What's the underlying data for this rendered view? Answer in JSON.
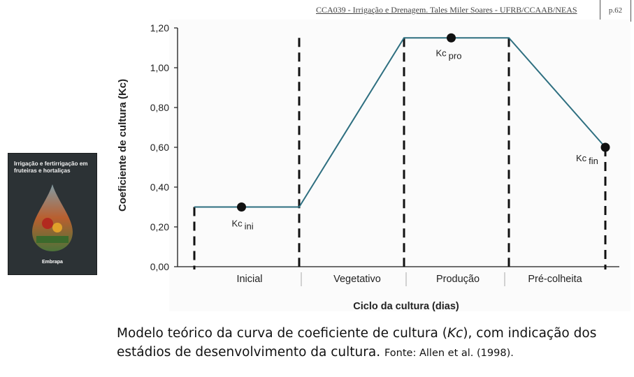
{
  "header": {
    "course": "CCA039 - Irrigação e Drenagem. Tales Miler Soares - UFRB/CCAAB/NEAS",
    "page": "p.62"
  },
  "book": {
    "title": "Irrigação e fertirrigação em fruteiras e hortaliças",
    "logo": "Embrapa"
  },
  "caption": {
    "main_before": "Modelo teórico da curva de coeficiente de cultura (",
    "main_italic": "Kc",
    "main_after": "), com indicação dos estádios de desenvolvimento da cultura.",
    "source": "Fonte: Allen et al. (1998)."
  },
  "colors": {
    "curve": "#2e6f80",
    "axis": "#1a1a1a",
    "marker": "#111111"
  },
  "chart_data": {
    "type": "line",
    "title": "",
    "xlabel": "Ciclo da cultura (dias)",
    "ylabel": "Coeficiente de cultura (Kc)",
    "ylim": [
      0,
      1.2
    ],
    "yticks": [
      {
        "value": 0.0,
        "label": "0,00"
      },
      {
        "value": 0.2,
        "label": "0,20"
      },
      {
        "value": 0.4,
        "label": "0,40"
      },
      {
        "value": 0.6,
        "label": "0,60"
      },
      {
        "value": 0.8,
        "label": "0,80"
      },
      {
        "value": 1.0,
        "label": "1,00"
      },
      {
        "value": 1.2,
        "label": "1,20"
      }
    ],
    "xlim": [
      0,
      4
    ],
    "stages": [
      "Inicial",
      "Vegetativo",
      "Produção",
      "Pré-colheita"
    ],
    "stage_boundaries": [
      0.1,
      1.0,
      2.0,
      3.0,
      3.95
    ],
    "series": [
      {
        "x": [
          0.0,
          1.0,
          2.0,
          3.0,
          3.95
        ],
        "y": [
          0.3,
          0.3,
          1.15,
          1.15,
          0.6
        ]
      }
    ],
    "points": [
      {
        "x": 0.45,
        "y": 0.3,
        "label_main": "Kc",
        "label_sub": "ini"
      },
      {
        "x": 2.45,
        "y": 1.15,
        "label_main": "Kc",
        "label_sub": "pro"
      },
      {
        "x": 3.95,
        "y": 0.6,
        "label_main": "Kc",
        "label_sub": "fin"
      }
    ],
    "grid": false
  }
}
